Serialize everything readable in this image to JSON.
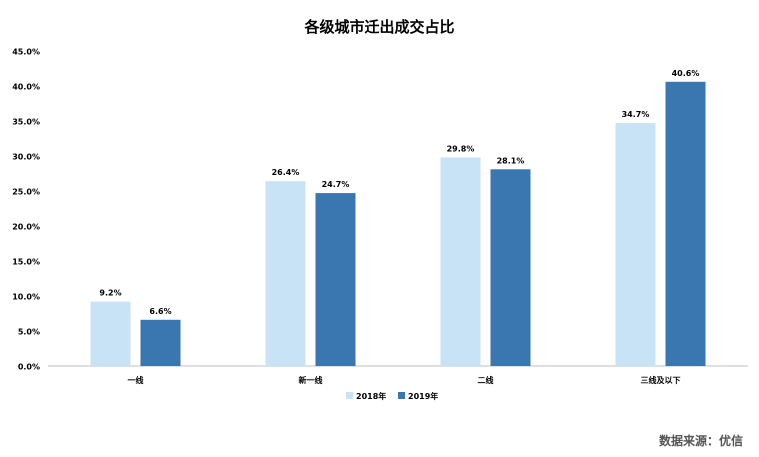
{
  "chart_data": {
    "type": "bar",
    "title": "各级城市迁出成交占比",
    "categories": [
      "一线",
      "新一线",
      "二线",
      "三线及以下"
    ],
    "series": [
      {
        "name": "2018年",
        "values": [
          9.2,
          26.4,
          29.8,
          34.7
        ],
        "color": "#c9e3f6",
        "labels": [
          "9.2%",
          "26.4%",
          "29.8%",
          "34.7%"
        ]
      },
      {
        "name": "2019年",
        "values": [
          6.6,
          24.7,
          28.1,
          40.6
        ],
        "color": "#3a76b0",
        "labels": [
          "6.6%",
          "24.7%",
          "28.1%",
          "40.6%"
        ]
      }
    ],
    "ylim": [
      0,
      45
    ],
    "yticks": [
      0,
      5,
      10,
      15,
      20,
      25,
      30,
      35,
      40,
      45
    ],
    "ytick_labels": [
      "0.0%",
      "5.0%",
      "10.0%",
      "15.0%",
      "20.0%",
      "25.0%",
      "30.0%",
      "35.0%",
      "40.0%",
      "45.0%"
    ],
    "grid": false,
    "legend": "bottom"
  },
  "source_text": "数据来源：优信"
}
